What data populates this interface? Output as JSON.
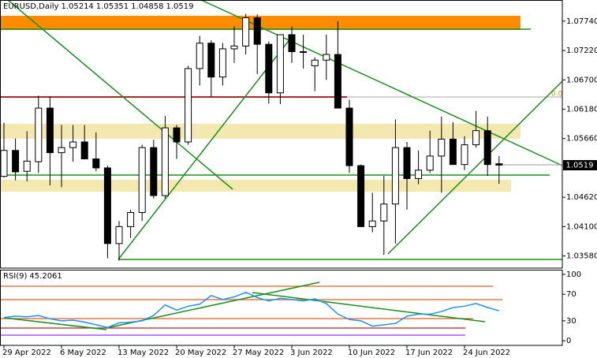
{
  "chart_data": [
    {
      "type": "candlestick",
      "title": "EURUSD,Daily",
      "categories": [
        "29 Apr 2022",
        null,
        null,
        null,
        null,
        "6 May 2022",
        null,
        null,
        null,
        null,
        "13 May 2022",
        null,
        null,
        null,
        null,
        "20 May 2022",
        null,
        null,
        null,
        null,
        "27 May 2022",
        null,
        null,
        null,
        null,
        "3 Jun 2022",
        null,
        null,
        null,
        null,
        "10 Jun 2022",
        null,
        null,
        null,
        null,
        "17 Jun 2022",
        null,
        null,
        null,
        null,
        "24 Jun 2022",
        null,
        null,
        null
      ],
      "open": [
        1.0499,
        1.0545,
        1.0508,
        1.0525,
        1.062,
        1.0541,
        1.055,
        1.056,
        1.053,
        1.0514,
        1.038,
        1.041,
        1.0435,
        1.055,
        1.0465,
        1.0585,
        1.056,
        1.069,
        1.0735,
        1.0675,
        1.0725,
        1.073,
        1.078,
        1.0733,
        1.0647,
        1.075,
        1.072,
        1.0695,
        1.0705,
        1.0715,
        1.062,
        1.0518,
        1.041,
        1.042,
        1.045,
        1.055,
        1.0495,
        1.051,
        1.0535,
        1.0565,
        1.052,
        1.0555,
        1.058,
        1.05214
      ],
      "high": [
        1.0594,
        1.0566,
        1.0579,
        1.0642,
        1.0641,
        1.059,
        1.059,
        1.059,
        1.0577,
        1.0518,
        1.042,
        1.044,
        1.0555,
        1.0564,
        1.0606,
        1.059,
        1.0695,
        1.0748,
        1.074,
        1.0735,
        1.0765,
        1.0787,
        1.0786,
        1.0738,
        1.075,
        1.0765,
        1.075,
        1.071,
        1.075,
        1.0774,
        1.0635,
        1.052,
        1.047,
        1.05,
        1.06,
        1.056,
        1.0545,
        1.058,
        1.0605,
        1.0595,
        1.057,
        1.0615,
        1.0605,
        1.05351
      ],
      "low": [
        1.0497,
        1.0492,
        1.049,
        1.0505,
        1.0483,
        1.048,
        1.0525,
        1.053,
        1.0508,
        1.0354,
        1.035,
        1.039,
        1.042,
        1.046,
        1.046,
        1.053,
        1.0555,
        1.066,
        1.064,
        1.066,
        1.07,
        1.0715,
        1.068,
        1.0628,
        1.0627,
        1.07,
        1.069,
        1.065,
        1.067,
        1.062,
        1.0505,
        1.041,
        1.04,
        1.036,
        1.038,
        1.044,
        1.0485,
        1.0505,
        1.047,
        1.052,
        1.051,
        1.055,
        1.05,
        1.04858
      ],
      "close": [
        1.0545,
        1.0507,
        1.0526,
        1.062,
        1.0541,
        1.055,
        1.056,
        1.053,
        1.0514,
        1.038,
        1.041,
        1.0435,
        1.055,
        1.0465,
        1.0585,
        1.056,
        1.069,
        1.0735,
        1.0675,
        1.0725,
        1.073,
        1.078,
        1.0733,
        1.0647,
        1.075,
        1.072,
        1.072,
        1.0705,
        1.0715,
        1.062,
        1.0518,
        1.041,
        1.042,
        1.045,
        1.055,
        1.0495,
        1.051,
        1.0535,
        1.0565,
        1.052,
        1.0555,
        1.058,
        1.052,
        1.0519
      ],
      "ylim": [
        1.03365,
        1.08115
      ],
      "yticks": [
        {
          "value": 1.0774,
          "label": "1.07740"
        },
        {
          "value": 1.0722,
          "label": "1.07220"
        },
        {
          "value": 1.067,
          "label": "1.06700"
        },
        {
          "value": 1.0618,
          "label": "1.06180"
        },
        {
          "value": 1.0566,
          "label": "1.05660"
        },
        {
          "value": 1.0462,
          "label": "1.04620"
        },
        {
          "value": 1.041,
          "label": "1.04100"
        },
        {
          "value": 1.0358,
          "label": "1.03580"
        }
      ],
      "annotations": [
        "0.0"
      ]
    },
    {
      "type": "line",
      "series": [
        {
          "name": "RSI(9)",
          "color": "#1e90ff",
          "values": [
            35,
            37,
            36,
            38,
            33,
            30,
            31,
            28,
            24,
            20,
            27,
            28,
            30,
            38,
            54,
            46,
            52,
            55,
            68,
            62,
            66,
            73,
            65,
            60,
            64,
            62,
            60,
            63,
            56,
            40,
            32,
            30,
            22,
            24,
            26,
            37,
            40,
            40,
            44,
            50,
            52,
            56,
            50,
            45.2061
          ]
        }
      ],
      "ylim": [
        -7,
        107
      ],
      "yticks": [
        100,
        70,
        30,
        0
      ]
    }
  ]
}
